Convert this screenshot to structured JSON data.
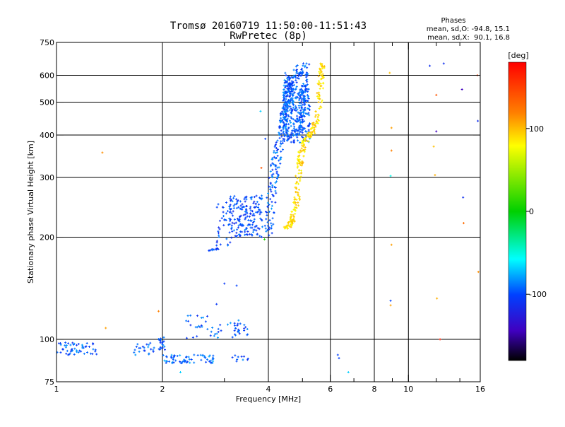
{
  "chart_data": {
    "type": "scatter",
    "title": "Tromsø 20160719 11:50:00-11:51:43",
    "subtitle": "RwPretec (8p)",
    "xlabel": "Frequency [MHz]",
    "ylabel": "Stationary phase Virtual Height [km]",
    "x_scale": "log",
    "y_scale": "log",
    "xlim": [
      1,
      16
    ],
    "ylim": [
      75,
      750
    ],
    "x_ticks": [
      1,
      2,
      4,
      6,
      8,
      10,
      16
    ],
    "x_tick_labels": [
      "1",
      "2",
      "4",
      "6",
      "8",
      "10",
      "16"
    ],
    "x_minor_ticks": [
      3,
      5,
      7,
      9,
      12,
      14
    ],
    "y_ticks": [
      75,
      100,
      200,
      300,
      400,
      500,
      600,
      750
    ],
    "y_tick_labels": [
      "75",
      "100",
      "200",
      "300",
      "400",
      "500",
      "600",
      "750"
    ],
    "grid": true,
    "x_gridlines": [
      2,
      4,
      6,
      8,
      10
    ],
    "y_gridlines": [
      100,
      200,
      300,
      400,
      500,
      600
    ],
    "phase_stats": {
      "heading": "Phases",
      "line_o": "mean, sd,O: -94.8, 15.1",
      "line_x": "mean, sd,X:  90.1, 16.8"
    },
    "colorbar": {
      "label": "[deg]",
      "range": [
        -180,
        180
      ],
      "ticks": [
        100,
        0,
        -100
      ],
      "tick_labels": [
        "100",
        "0",
        "-100"
      ]
    },
    "clusters": [
      {
        "kind": "path",
        "phase": -95,
        "n": 220,
        "spread": 0.03,
        "width": 2,
        "path": [
          [
            4.0,
            200
          ],
          [
            4.05,
            240
          ],
          [
            4.1,
            280
          ],
          [
            4.2,
            330
          ],
          [
            4.3,
            380
          ],
          [
            4.4,
            430
          ],
          [
            4.5,
            480
          ],
          [
            4.6,
            530
          ],
          [
            4.75,
            590
          ],
          [
            4.95,
            640
          ]
        ]
      },
      {
        "kind": "path",
        "phase": -95,
        "n": 90,
        "spread": 0.025,
        "width": 2,
        "path": [
          [
            4.9,
            400
          ],
          [
            4.95,
            460
          ],
          [
            5.0,
            520
          ],
          [
            5.05,
            580
          ],
          [
            5.1,
            650
          ]
        ]
      },
      {
        "kind": "path",
        "phase": -95,
        "n": 90,
        "spread": 0.03,
        "width": 2,
        "path": [
          [
            4.4,
            420
          ],
          [
            4.5,
            500
          ],
          [
            4.55,
            560
          ],
          [
            4.6,
            610
          ]
        ]
      },
      {
        "kind": "box",
        "phase": -95,
        "n": 260,
        "xr": [
          4.4,
          5.25
        ],
        "yr": [
          380,
          560
        ]
      },
      {
        "kind": "box",
        "phase": -100,
        "n": 170,
        "xr": [
          3.1,
          3.85
        ],
        "yr": [
          200,
          265
        ]
      },
      {
        "kind": "box",
        "phase": -100,
        "n": 40,
        "xr": [
          2.85,
          3.15
        ],
        "yr": [
          188,
          260
        ]
      },
      {
        "kind": "path",
        "phase": -100,
        "n": 14,
        "spread": 0.01,
        "width": 2,
        "path": [
          [
            2.7,
            183
          ],
          [
            2.9,
            185
          ]
        ]
      },
      {
        "kind": "path",
        "phase": 90,
        "n": 260,
        "spread": 0.02,
        "width": 2,
        "path": [
          [
            4.5,
            212
          ],
          [
            4.6,
            218
          ],
          [
            4.7,
            228
          ],
          [
            4.8,
            250
          ],
          [
            4.85,
            280
          ],
          [
            4.9,
            320
          ],
          [
            4.95,
            350
          ],
          [
            5.05,
            380
          ],
          [
            5.2,
            395
          ],
          [
            5.35,
            410
          ],
          [
            5.5,
            450
          ],
          [
            5.6,
            520
          ],
          [
            5.65,
            600
          ],
          [
            5.7,
            650
          ]
        ]
      },
      {
        "kind": "box",
        "phase": -95,
        "n": 40,
        "xr": [
          2.3,
          3.3
        ],
        "yr": [
          100,
          118
        ]
      },
      {
        "kind": "box",
        "phase": -100,
        "n": 18,
        "xr": [
          3.2,
          3.5
        ],
        "yr": [
          103,
          112
        ]
      },
      {
        "kind": "box",
        "phase": -95,
        "n": 55,
        "xr": [
          1.0,
          1.3
        ],
        "yr": [
          90,
          98
        ]
      },
      {
        "kind": "box",
        "phase": -95,
        "n": 22,
        "xr": [
          1.65,
          1.9
        ],
        "yr": [
          90,
          98
        ]
      },
      {
        "kind": "box",
        "phase": -95,
        "n": 20,
        "xr": [
          1.95,
          2.05
        ],
        "yr": [
          93,
          102
        ]
      },
      {
        "kind": "box",
        "phase": -90,
        "n": 65,
        "xr": [
          2.0,
          2.8
        ],
        "yr": [
          85,
          90
        ]
      },
      {
        "kind": "box",
        "phase": -95,
        "n": 10,
        "xr": [
          3.1,
          3.6
        ],
        "yr": [
          85,
          90
        ]
      }
    ],
    "sparse_points": [
      [
        1.35,
        355,
        115
      ],
      [
        1.38,
        108,
        110
      ],
      [
        1.95,
        121,
        120
      ],
      [
        2.85,
        127,
        -105
      ],
      [
        3.0,
        146,
        -105
      ],
      [
        3.25,
        144,
        -100
      ],
      [
        3.8,
        470,
        -70
      ],
      [
        3.82,
        320,
        140
      ],
      [
        3.9,
        197,
        10
      ],
      [
        3.92,
        390,
        -100
      ],
      [
        2.25,
        80,
        -70
      ],
      [
        6.3,
        90,
        -100
      ],
      [
        6.35,
        88,
        -100
      ],
      [
        6.75,
        80,
        -70
      ],
      [
        8.85,
        610,
        100
      ],
      [
        8.95,
        420,
        110
      ],
      [
        8.95,
        360,
        120
      ],
      [
        8.9,
        303,
        -55
      ],
      [
        8.95,
        190,
        110
      ],
      [
        8.9,
        130,
        -100
      ],
      [
        8.9,
        126,
        110
      ],
      [
        11.5,
        640,
        -110
      ],
      [
        12.6,
        650,
        -110
      ],
      [
        12.0,
        525,
        140
      ],
      [
        12.0,
        410,
        -140
      ],
      [
        11.8,
        370,
        100
      ],
      [
        11.9,
        305,
        105
      ],
      [
        12.05,
        132,
        105
      ],
      [
        12.3,
        100,
        165
      ],
      [
        14.2,
        545,
        -140
      ],
      [
        14.3,
        262,
        -110
      ],
      [
        14.35,
        220,
        130
      ],
      [
        15.7,
        600,
        150
      ],
      [
        15.75,
        440,
        -110
      ],
      [
        15.8,
        158,
        115
      ]
    ]
  }
}
